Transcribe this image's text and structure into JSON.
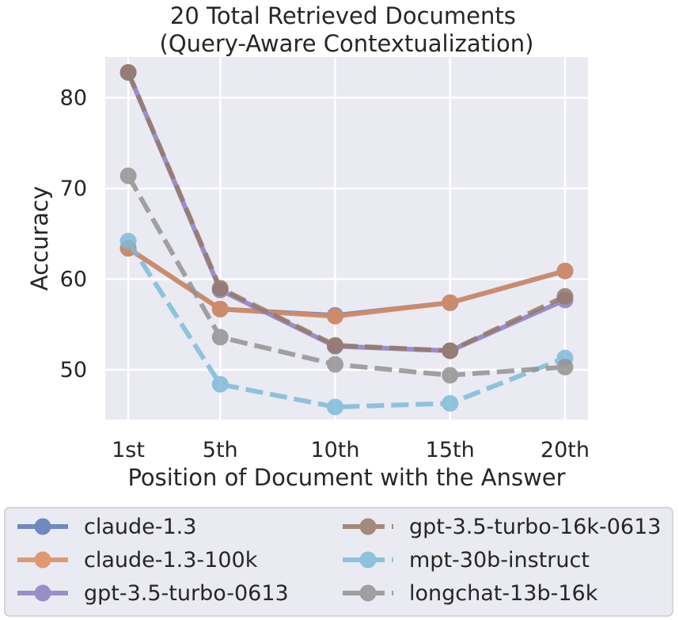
{
  "chart_data": {
    "type": "line",
    "title": "20 Total Retrieved Documents\n(Query-Aware Contextualization)",
    "xlabel": "Position of Document with the Answer",
    "ylabel": "Accuracy",
    "categories": [
      "1st",
      "5th",
      "10th",
      "15th",
      "20th"
    ],
    "x": [
      1,
      5,
      10,
      15,
      20
    ],
    "xlim": [
      0.0,
      21.0
    ],
    "ylim": [
      44.5,
      84.5
    ],
    "yticks": [
      50,
      60,
      70,
      80
    ],
    "grid": true,
    "legend_position": "bottom",
    "series": [
      {
        "name": "claude-1.3",
        "color": "#5b78b8",
        "dashed": false,
        "values": [
          63.4,
          56.7,
          56.0,
          57.4,
          60.9
        ]
      },
      {
        "name": "claude-1.3-100k",
        "color": "#dc8c5e",
        "dashed": false,
        "values": [
          63.4,
          56.7,
          55.9,
          57.4,
          60.9
        ]
      },
      {
        "name": "gpt-3.5-turbo-0613",
        "color": "#8d7fc2",
        "dashed": false,
        "values": [
          82.8,
          58.8,
          52.6,
          52.1,
          57.7
        ]
      },
      {
        "name": "gpt-3.5-turbo-16k-0613",
        "color": "#967a68",
        "dashed": true,
        "values": [
          82.8,
          59.0,
          52.7,
          52.1,
          58.1
        ]
      },
      {
        "name": "mpt-30b-instruct",
        "color": "#7fbbd9",
        "dashed": true,
        "values": [
          64.2,
          48.4,
          45.9,
          46.3,
          51.3
        ]
      },
      {
        "name": "longchat-13b-16k",
        "color": "#939393",
        "dashed": true,
        "values": [
          71.4,
          53.6,
          50.6,
          49.4,
          50.3
        ]
      }
    ]
  }
}
